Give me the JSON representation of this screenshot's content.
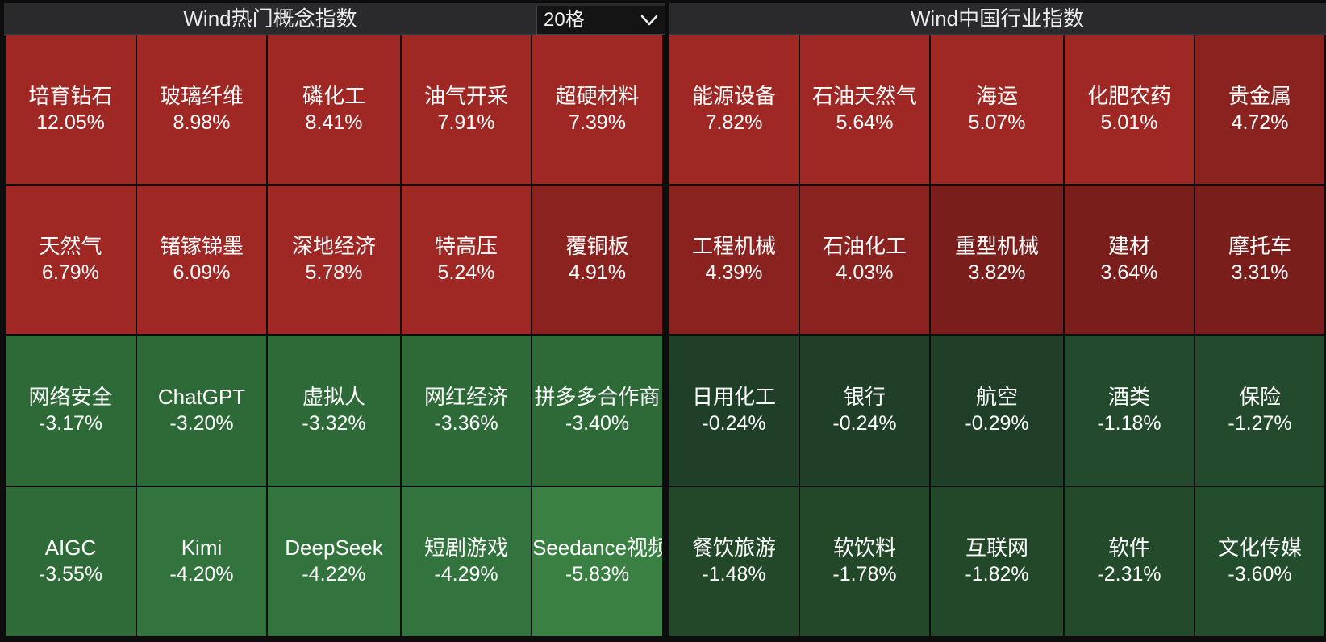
{
  "left_panel": {
    "title": "Wind热门概念指数",
    "grid_select": {
      "value": "20格"
    },
    "cells": [
      {
        "name": "培育钻石",
        "change": "12.05%",
        "color": "#9f2724"
      },
      {
        "name": "玻璃纤维",
        "change": "8.98%",
        "color": "#9f2724"
      },
      {
        "name": "磷化工",
        "change": "8.41%",
        "color": "#9f2724"
      },
      {
        "name": "油气开采",
        "change": "7.91%",
        "color": "#9f2724"
      },
      {
        "name": "超硬材料",
        "change": "7.39%",
        "color": "#9f2724"
      },
      {
        "name": "天然气",
        "change": "6.79%",
        "color": "#9f2724"
      },
      {
        "name": "锗镓锑墨",
        "change": "6.09%",
        "color": "#9f2724"
      },
      {
        "name": "深地经济",
        "change": "5.78%",
        "color": "#9f2724"
      },
      {
        "name": "特高压",
        "change": "5.24%",
        "color": "#9f2724"
      },
      {
        "name": "覆铜板",
        "change": "4.91%",
        "color": "#8a2220"
      },
      {
        "name": "网络安全",
        "change": "-3.17%",
        "color": "#2e6a38"
      },
      {
        "name": "ChatGPT",
        "change": "-3.20%",
        "color": "#2e6a38"
      },
      {
        "name": "虚拟人",
        "change": "-3.32%",
        "color": "#2e6a38"
      },
      {
        "name": "网红经济",
        "change": "-3.36%",
        "color": "#2e6a38"
      },
      {
        "name": "拼多多合作商",
        "change": "-3.40%",
        "color": "#2e6a38"
      },
      {
        "name": "AIGC",
        "change": "-3.55%",
        "color": "#2f6b39"
      },
      {
        "name": "Kimi",
        "change": "-4.20%",
        "color": "#33733d"
      },
      {
        "name": "DeepSeek",
        "change": "-4.22%",
        "color": "#33733d"
      },
      {
        "name": "短剧游戏",
        "change": "-4.29%",
        "color": "#33733d"
      },
      {
        "name": "Seedance视频大模型",
        "change": "-5.83%",
        "color": "#3a8043"
      }
    ]
  },
  "right_panel": {
    "title": "Wind中国行业指数",
    "cells": [
      {
        "name": "能源设备",
        "change": "7.82%",
        "color": "#9f2724"
      },
      {
        "name": "石油天然气",
        "change": "5.64%",
        "color": "#9f2724"
      },
      {
        "name": "海运",
        "change": "5.07%",
        "color": "#9f2724"
      },
      {
        "name": "化肥农药",
        "change": "5.01%",
        "color": "#9f2724"
      },
      {
        "name": "贵金属",
        "change": "4.72%",
        "color": "#8a2220"
      },
      {
        "name": "工程机械",
        "change": "4.39%",
        "color": "#8a2220"
      },
      {
        "name": "石油化工",
        "change": "4.03%",
        "color": "#8a2220"
      },
      {
        "name": "重型机械",
        "change": "3.82%",
        "color": "#7a1e1c"
      },
      {
        "name": "建材",
        "change": "3.64%",
        "color": "#7a1e1c"
      },
      {
        "name": "摩托车",
        "change": "3.31%",
        "color": "#7a1e1c"
      },
      {
        "name": "日用化工",
        "change": "-0.24%",
        "color": "#1f3f28"
      },
      {
        "name": "银行",
        "change": "-0.24%",
        "color": "#1f3f28"
      },
      {
        "name": "航空",
        "change": "-0.29%",
        "color": "#1f3f28"
      },
      {
        "name": "酒类",
        "change": "-1.18%",
        "color": "#244a2d"
      },
      {
        "name": "保险",
        "change": "-1.27%",
        "color": "#244a2d"
      },
      {
        "name": "餐饮旅游",
        "change": "-1.48%",
        "color": "#224729"
      },
      {
        "name": "软饮料",
        "change": "-1.78%",
        "color": "#224729"
      },
      {
        "name": "互联网",
        "change": "-1.82%",
        "color": "#224729"
      },
      {
        "name": "软件",
        "change": "-2.31%",
        "color": "#234a2b"
      },
      {
        "name": "文化传媒",
        "change": "-3.60%",
        "color": "#244d2d"
      }
    ]
  }
}
